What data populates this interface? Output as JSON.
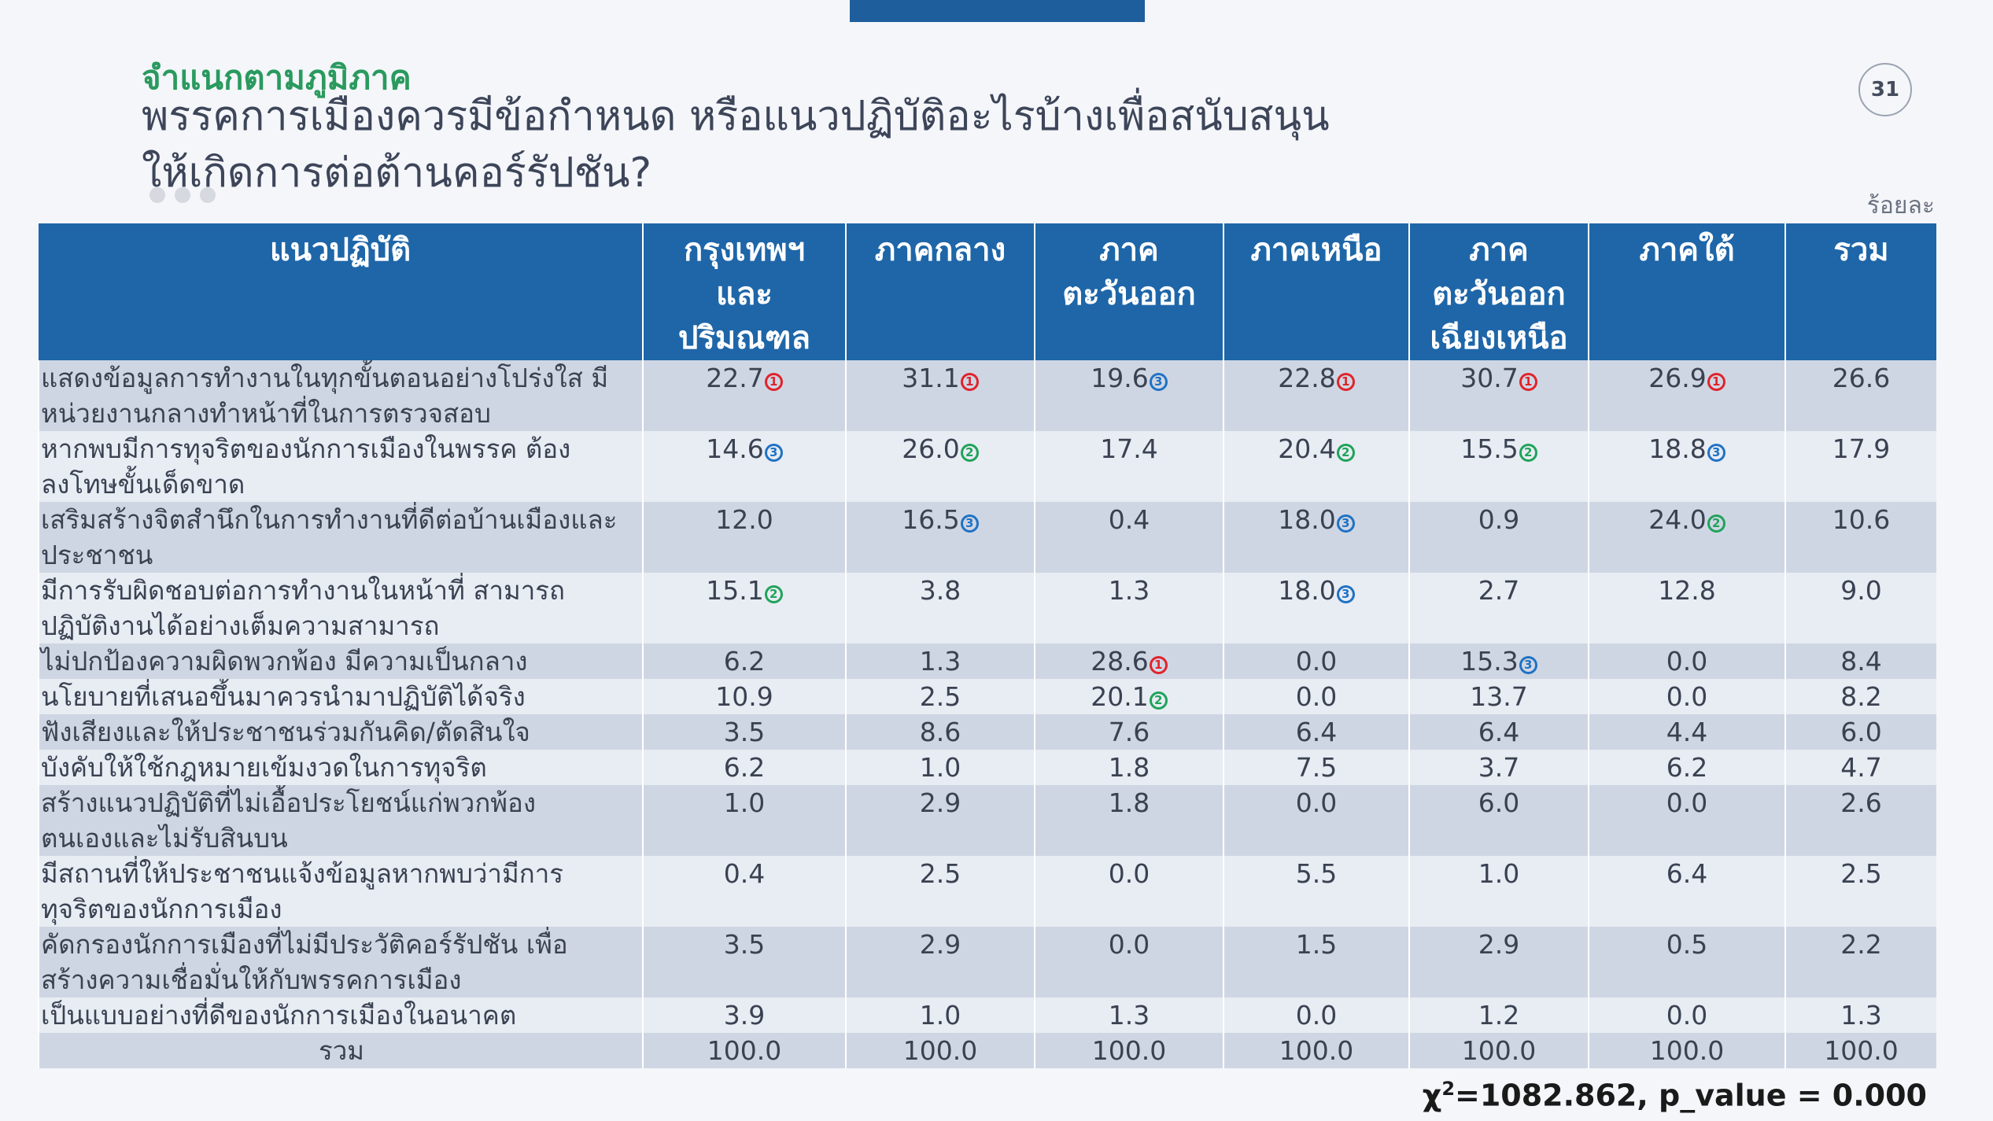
{
  "colors": {
    "header_bg": "#1e66a8",
    "subtitle": "#2a9a5e",
    "rank1": "#e0232b",
    "rank2": "#1fa35a",
    "rank3": "#1f72c4",
    "top_bar": "#1f5e9c"
  },
  "slide": {
    "subtitle": "จำแนกตามภูมิภาค",
    "title_line1": "พรรคการเมืองควรมีข้อกำหนด หรือแนวปฏิบัติอะไรบ้างเพื่อสนับสนุน",
    "title_line2": "ให้เกิดการต่อต้านคอร์รัปชัน?",
    "page_number": "31",
    "unit": "ร้อยละ",
    "chi_symbol": "χ",
    "chi_sup": "2",
    "chi_text": "=1082.862, p_value = 0.000"
  },
  "table": {
    "columns": [
      {
        "line1": "แนวปฏิบัติ",
        "line2": "",
        "line3": ""
      },
      {
        "line1": "กรุงเทพฯ",
        "line2": "และ",
        "line3": "ปริมณฑล"
      },
      {
        "line1": "ภาคกลาง",
        "line2": "",
        "line3": ""
      },
      {
        "line1": "ภาค",
        "line2": "ตะวันออก",
        "line3": ""
      },
      {
        "line1": "ภาคเหนือ",
        "line2": "",
        "line3": ""
      },
      {
        "line1": "ภาค",
        "line2": "ตะวันออก",
        "line3": "เฉียงเหนือ"
      },
      {
        "line1": "ภาคใต้",
        "line2": "",
        "line3": ""
      },
      {
        "line1": "รวม",
        "line2": "",
        "line3": ""
      }
    ],
    "rows": [
      {
        "line1": "แสดงข้อมูลการทำงานในทุกขั้นตอนอย่างโปร่งใส มี",
        "line2": "หน่วยงานกลางทำหน้าที่ในการตรวจสอบ",
        "values": [
          "22.7",
          "31.1",
          "19.6",
          "22.8",
          "30.7",
          "26.9",
          "26.6"
        ],
        "ranks": [
          "1",
          "1",
          "3",
          "1",
          "1",
          "1",
          ""
        ]
      },
      {
        "line1": "หากพบมีการทุจริตของนักการเมืองในพรรค ต้อง",
        "line2": "ลงโทษขั้นเด็ดขาด",
        "values": [
          "14.6",
          "26.0",
          "17.4",
          "20.4",
          "15.5",
          "18.8",
          "17.9"
        ],
        "ranks": [
          "3",
          "2",
          "",
          "2",
          "2",
          "3",
          ""
        ]
      },
      {
        "line1": "เสริมสร้างจิตสำนึกในการทำงานที่ดีต่อบ้านเมืองและ",
        "line2": "ประชาชน",
        "values": [
          "12.0",
          "16.5",
          "0.4",
          "18.0",
          "0.9",
          "24.0",
          "10.6"
        ],
        "ranks": [
          "",
          "3",
          "",
          "3",
          "",
          "2",
          ""
        ]
      },
      {
        "line1": "มีการรับผิดชอบต่อการทำงานในหน้าที่ สามารถ",
        "line2": "ปฏิบัติงานได้อย่างเต็มความสามารถ",
        "values": [
          "15.1",
          "3.8",
          "1.3",
          "18.0",
          "2.7",
          "12.8",
          "9.0"
        ],
        "ranks": [
          "2",
          "",
          "",
          "3",
          "",
          "",
          ""
        ]
      },
      {
        "line1": "ไม่ปกป้องความผิดพวกพ้อง มีความเป็นกลาง",
        "line2": "",
        "values": [
          "6.2",
          "1.3",
          "28.6",
          "0.0",
          "15.3",
          "0.0",
          "8.4"
        ],
        "ranks": [
          "",
          "",
          "1",
          "",
          "3",
          "",
          ""
        ]
      },
      {
        "line1": "นโยบายที่เสนอขึ้นมาควรนำมาปฏิบัติได้จริง",
        "line2": "",
        "values": [
          "10.9",
          "2.5",
          "20.1",
          "0.0",
          "13.7",
          "0.0",
          "8.2"
        ],
        "ranks": [
          "",
          "",
          "2",
          "",
          "",
          "",
          ""
        ]
      },
      {
        "line1": "ฟังเสียงและให้ประชาชนร่วมกันคิด/ตัดสินใจ",
        "line2": "",
        "values": [
          "3.5",
          "8.6",
          "7.6",
          "6.4",
          "6.4",
          "4.4",
          "6.0"
        ],
        "ranks": [
          "",
          "",
          "",
          "",
          "",
          "",
          ""
        ]
      },
      {
        "line1": "บังคับให้ใช้กฎหมายเข้มงวดในการทุจริต",
        "line2": "",
        "values": [
          "6.2",
          "1.0",
          "1.8",
          "7.5",
          "3.7",
          "6.2",
          "4.7"
        ],
        "ranks": [
          "",
          "",
          "",
          "",
          "",
          "",
          ""
        ]
      },
      {
        "line1": "สร้างแนวปฏิบัติที่ไม่เอื้อประโยชน์แก่พวกพ้อง",
        "line2": "ตนเองและไม่รับสินบน",
        "values": [
          "1.0",
          "2.9",
          "1.8",
          "0.0",
          "6.0",
          "0.0",
          "2.6"
        ],
        "ranks": [
          "",
          "",
          "",
          "",
          "",
          "",
          ""
        ]
      },
      {
        "line1": "มีสถานที่ให้ประชาชนแจ้งข้อมูลหากพบว่ามีการ",
        "line2": "ทุจริตของนักการเมือง",
        "values": [
          "0.4",
          "2.5",
          "0.0",
          "5.5",
          "1.0",
          "6.4",
          "2.5"
        ],
        "ranks": [
          "",
          "",
          "",
          "",
          "",
          "",
          ""
        ]
      },
      {
        "line1": "คัดกรองนักการเมืองที่ไม่มีประวัติคอร์รัปชัน เพื่อ",
        "line2": "สร้างความเชื่อมั่นให้กับพรรคการเมือง",
        "values": [
          "3.5",
          "2.9",
          "0.0",
          "1.5",
          "2.9",
          "0.5",
          "2.2"
        ],
        "ranks": [
          "",
          "",
          "",
          "",
          "",
          "",
          ""
        ]
      },
      {
        "line1": "เป็นแบบอย่างที่ดีของนักการเมืองในอนาคต",
        "line2": "",
        "values": [
          "3.9",
          "1.0",
          "1.3",
          "0.0",
          "1.2",
          "0.0",
          "1.3"
        ],
        "ranks": [
          "",
          "",
          "",
          "",
          "",
          "",
          ""
        ]
      }
    ],
    "total": {
      "label": "รวม",
      "values": [
        "100.0",
        "100.0",
        "100.0",
        "100.0",
        "100.0",
        "100.0",
        "100.0"
      ]
    }
  }
}
